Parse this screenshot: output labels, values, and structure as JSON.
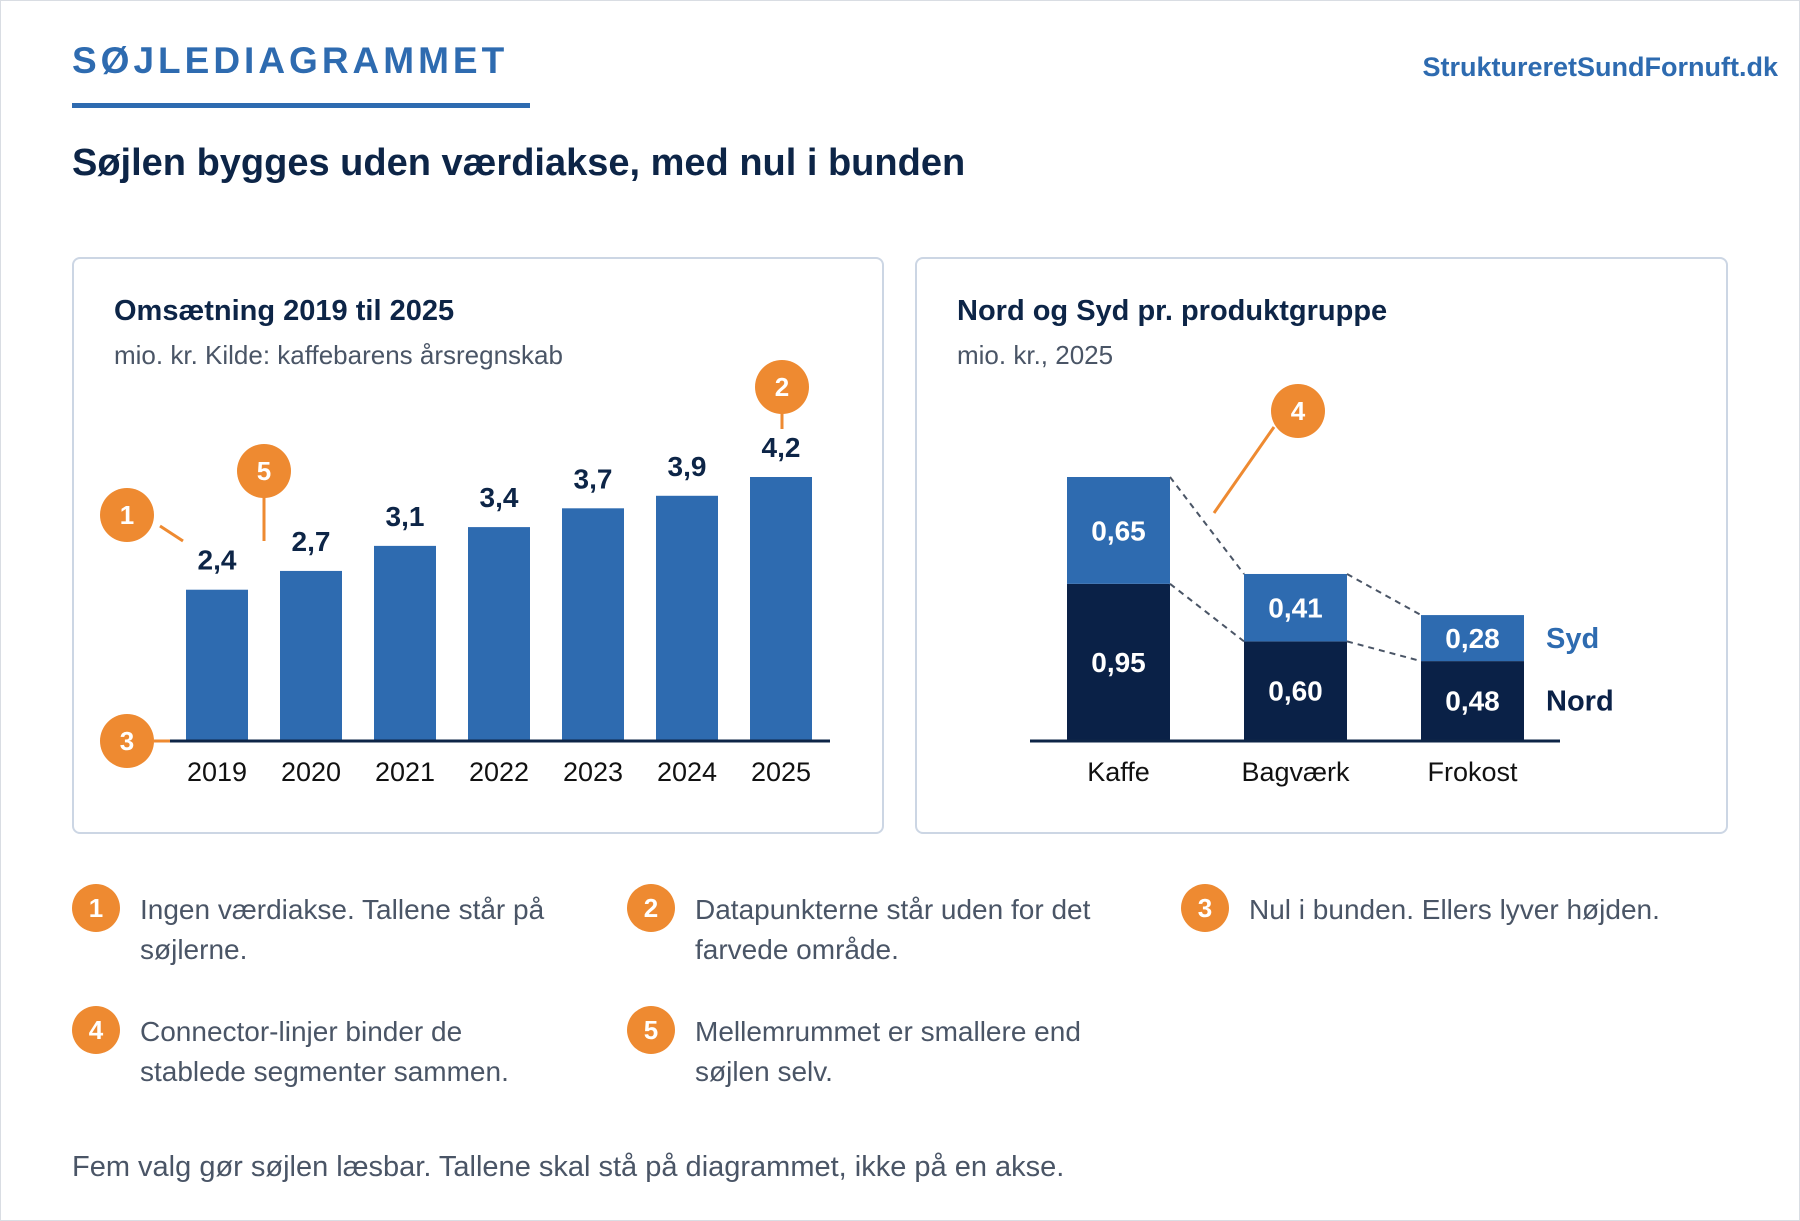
{
  "header": {
    "kicker": "SØJLEDIAGRAMMET",
    "brand": "StruktureretSundFornuft.dk",
    "headline": "Søjlen bygges uden værdiakse, med nul i bunden"
  },
  "colors": {
    "primary_blue": "#2e6bb0",
    "navy": "#0a2147",
    "callout_orange": "#ee8a31",
    "text_gray": "#4a5566"
  },
  "chart_data": [
    {
      "type": "bar",
      "title": "Omsætning 2019 til 2025",
      "subtitle": "mio. kr. Kilde: kaffebarens årsregnskab",
      "categories": [
        "2019",
        "2020",
        "2021",
        "2022",
        "2023",
        "2024",
        "2025"
      ],
      "values": [
        2.4,
        2.7,
        3.1,
        3.4,
        3.7,
        3.9,
        4.2
      ],
      "value_labels": [
        "2,4",
        "2,7",
        "3,1",
        "3,4",
        "3,7",
        "3,9",
        "4,2"
      ],
      "ylim": [
        0,
        4.2
      ],
      "grid": false,
      "value_axis": false,
      "callouts": [
        "1",
        "2",
        "3",
        "5"
      ]
    },
    {
      "type": "bar",
      "stacked": true,
      "title": "Nord og Syd pr. produktgruppe",
      "subtitle": "mio. kr., 2025",
      "categories": [
        "Kaffe",
        "Bagværk",
        "Frokost"
      ],
      "series": [
        {
          "name": "Nord",
          "values": [
            0.95,
            0.6,
            0.48
          ],
          "labels": [
            "0,95",
            "0,60",
            "0,48"
          ],
          "color": "#0a2147"
        },
        {
          "name": "Syd",
          "values": [
            0.65,
            0.41,
            0.28
          ],
          "labels": [
            "0,65",
            "0,41",
            "0,28"
          ],
          "color": "#2e6bb0"
        }
      ],
      "ylim": [
        0,
        1.6
      ],
      "legend": "right",
      "grid": false,
      "connector_lines": true,
      "callouts": [
        "4"
      ]
    }
  ],
  "notes": [
    {
      "num": "1",
      "text": "Ingen værdiakse. Tallene står på søjlerne."
    },
    {
      "num": "2",
      "text": "Datapunkterne står uden for det farvede område."
    },
    {
      "num": "3",
      "text": "Nul i bunden. Ellers lyver højden."
    },
    {
      "num": "4",
      "text": "Connector-linjer binder de stablede segmenter sammen."
    },
    {
      "num": "5",
      "text": "Mellemrummet er smallere end søjlen selv."
    }
  ],
  "footer": "Fem valg gør søjlen læsbar. Tallene skal stå på diagrammet, ikke på en akse."
}
